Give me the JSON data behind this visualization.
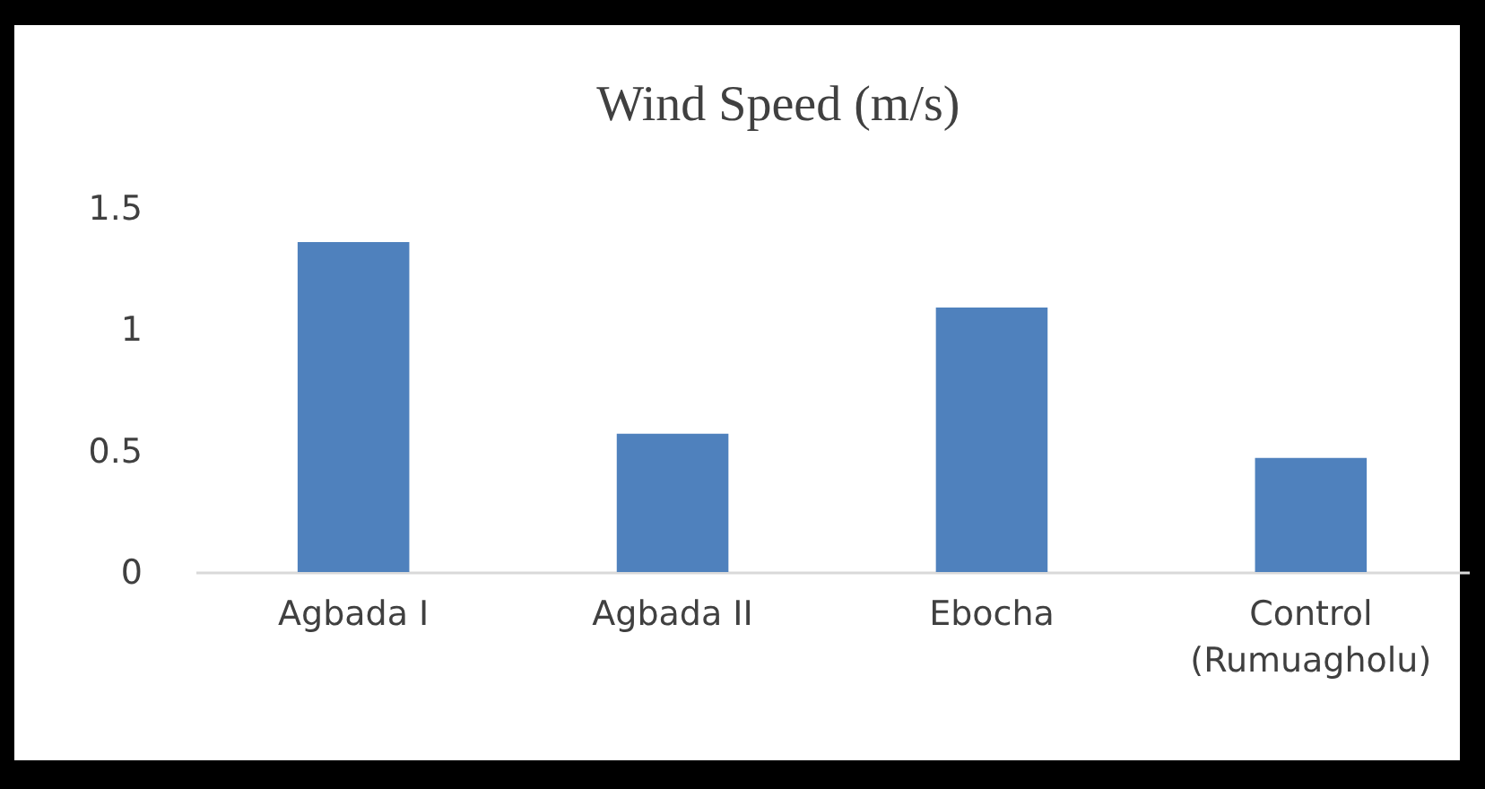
{
  "chart_data": {
    "type": "bar",
    "title": "Wind Speed (m/s)",
    "categories": [
      "Agbada I",
      "Agbada II",
      "Ebocha",
      "Control (Rumuagholu)"
    ],
    "values": [
      1.36,
      0.57,
      1.09,
      0.47
    ],
    "color": "#4f81bd",
    "ylim": [
      0,
      1.5
    ],
    "yticks": [
      0,
      0.5,
      1,
      1.5
    ],
    "grid": false,
    "legend": false
  }
}
